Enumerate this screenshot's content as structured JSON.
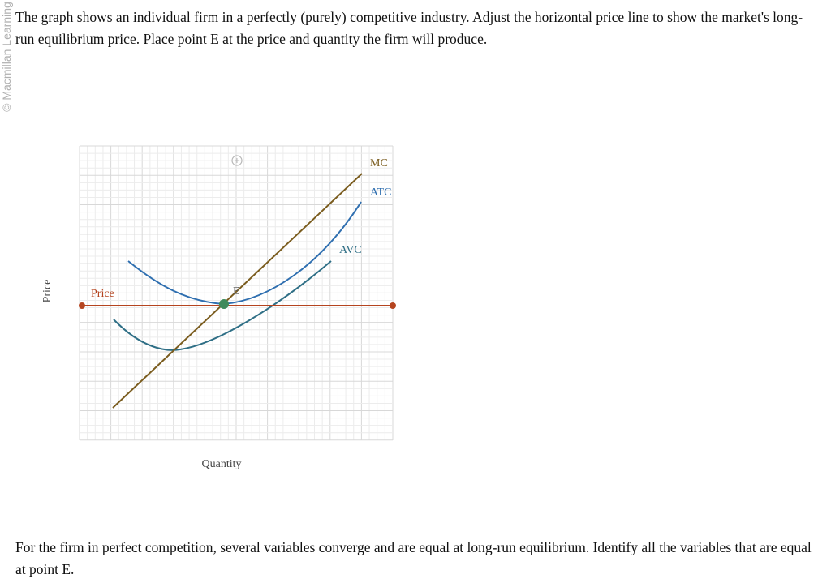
{
  "watermark": "© Macmillan Learning",
  "question": "The graph shows an individual firm in a perfectly (purely) competitive industry. Adjust the horizontal price line to show the market's long-run equilibrium price. Place point E at the price and quantity the firm will produce.",
  "graph": {
    "y_axis_label": "Price",
    "x_axis_label": "Quantity",
    "curves": {
      "mc": {
        "label": "MC",
        "color": "#7a5c1e"
      },
      "atc": {
        "label": "ATC",
        "color": "#2f6fb0"
      },
      "avc": {
        "label": "AVC",
        "color": "#2f6f86"
      }
    },
    "price_line": {
      "label": "Price",
      "color": "#b5441f"
    },
    "point_e": {
      "label": "E",
      "color": "#3f8a5c"
    },
    "toolbox_icon": "add-point-icon"
  },
  "followup": "For the firm in perfect competition, several variables converge and are equal at long-run equilibrium. Identify all the variables that are equal at point E."
}
